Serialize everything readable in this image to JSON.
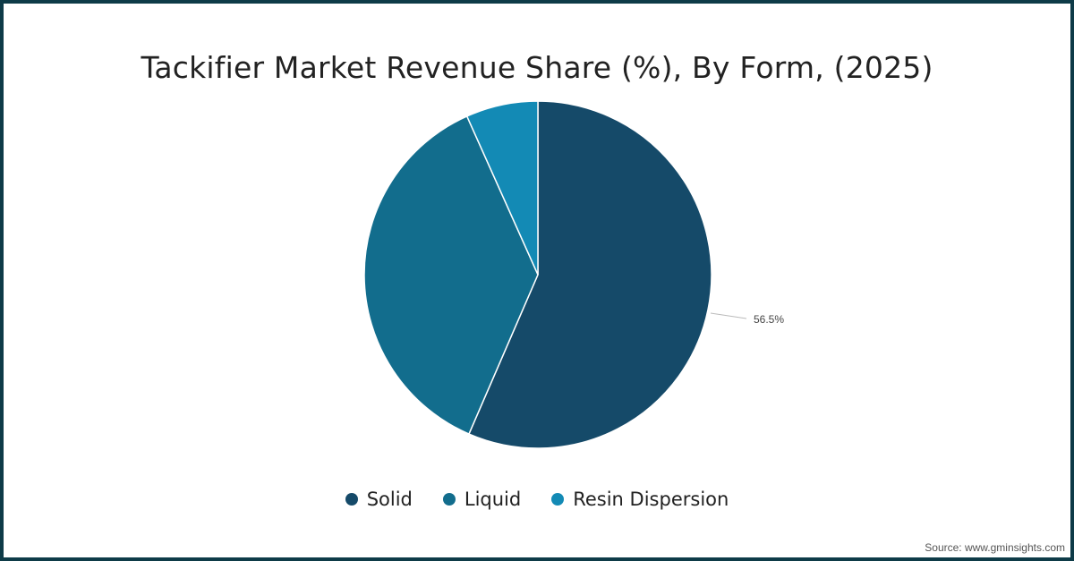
{
  "chart_data": {
    "type": "pie",
    "title": "Tackifier Market Revenue Share (%), By Form, (2025)",
    "categories": [
      "Solid",
      "Liquid",
      "Resin Dispersion"
    ],
    "values": [
      56.5,
      36.8,
      6.7
    ],
    "colors": [
      "#154a69",
      "#126d8d",
      "#138ab5"
    ],
    "data_labels": [
      "56.5%",
      "",
      ""
    ],
    "legend_position": "bottom"
  },
  "labels": {
    "solid_value": "56.5%"
  },
  "legend": [
    {
      "label": "Solid",
      "color": "#154a69"
    },
    {
      "label": "Liquid",
      "color": "#126d8d"
    },
    {
      "label": "Resin Dispersion",
      "color": "#138ab5"
    }
  ],
  "source": "Source: www.gminsights.com"
}
